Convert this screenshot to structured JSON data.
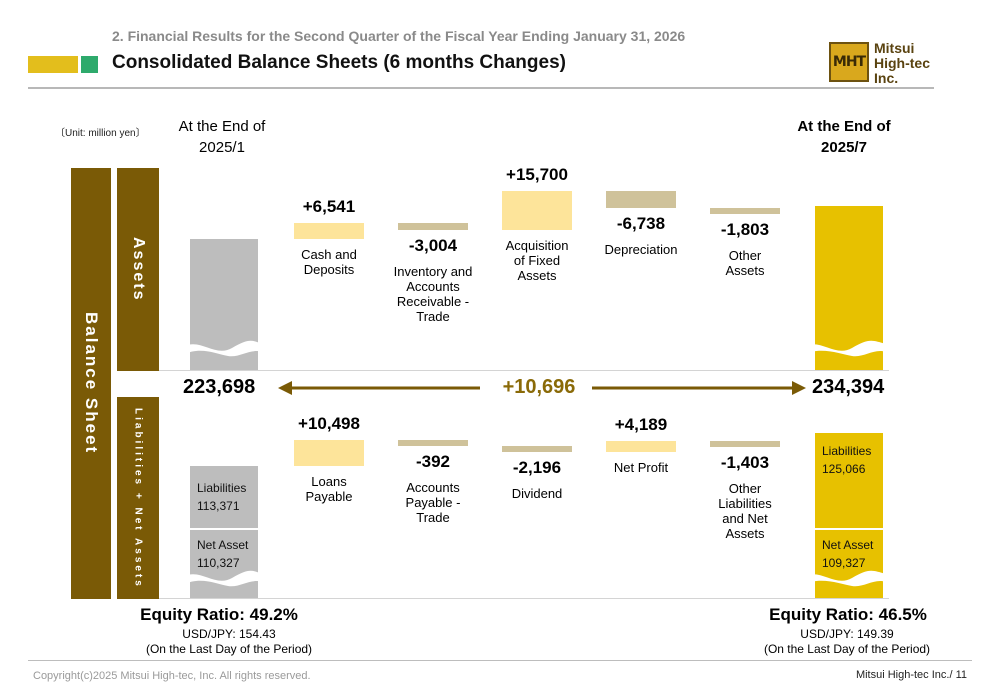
{
  "header": {
    "supertitle": "2. Financial Results for the Second Quarter of the Fiscal Year Ending January 31, 2026",
    "title": "Consolidated Balance Sheets (6 months Changes)",
    "logo_mark": "MHT",
    "logo_lines": [
      "Mitsui",
      "High-tec",
      "Inc."
    ]
  },
  "unit_label": "〔Unit: million yen〕",
  "side_labels": {
    "balance_sheet": "Balance Sheet",
    "assets": "Assets",
    "liabilities_net_assets": "Liabilities + Net Assets"
  },
  "columns": {
    "start_label_lines": [
      "At the End of",
      "2025/1"
    ],
    "end_label_lines": [
      "At the End of",
      "2025/7"
    ]
  },
  "chart_data": {
    "type": "bar",
    "subtype": "waterfall",
    "unit": "million yen",
    "start_total": {
      "label": "223,698",
      "value": 223698
    },
    "end_total": {
      "label": "234,394",
      "value": 234394
    },
    "total_change": {
      "label": "+10,696",
      "value": 10696
    },
    "assets_changes": [
      {
        "category_lines": [
          "Cash and",
          "Deposits"
        ],
        "label": "+6,541",
        "value": 6541
      },
      {
        "category_lines": [
          "Inventory and",
          "Accounts",
          "Receivable -",
          "Trade"
        ],
        "label": "-3,004",
        "value": -3004
      },
      {
        "category_lines": [
          "Acquisition",
          "of Fixed",
          "Assets"
        ],
        "label": "+15,700",
        "value": 15700
      },
      {
        "category_lines": [
          "Depreciation"
        ],
        "label": "-6,738",
        "value": -6738
      },
      {
        "category_lines": [
          "Other",
          "Assets"
        ],
        "label": "-1,803",
        "value": -1803
      }
    ],
    "liabilities_changes": [
      {
        "category_lines": [
          "Loans",
          "Payable"
        ],
        "label": "+10,498",
        "value": 10498
      },
      {
        "category_lines": [
          "Accounts",
          "Payable -",
          "Trade"
        ],
        "label": "-392",
        "value": -392
      },
      {
        "category_lines": [
          "Dividend"
        ],
        "label": "-2,196",
        "value": -2196
      },
      {
        "category_lines": [
          "Net Profit"
        ],
        "label": "+4,189",
        "value": 4189
      },
      {
        "category_lines": [
          "Other",
          "Liabilities",
          "and Net",
          "Assets"
        ],
        "label": "-1,403",
        "value": -1403
      }
    ],
    "start_breakdown": {
      "liabilities": {
        "name": "Liabilities",
        "label": "113,371",
        "value": 113371
      },
      "net_assets": {
        "name": "Net Asset",
        "label": "110,327",
        "value": 110327
      }
    },
    "end_breakdown": {
      "liabilities": {
        "name": "Liabilities",
        "label": "125,066",
        "value": 125066
      },
      "net_assets": {
        "name": "Net Asset",
        "label": "109,327",
        "value": 109327
      }
    },
    "colors": {
      "start_bar": "#bdbdbd",
      "end_bar": "#e7c100",
      "increase": "#fde49a",
      "decrease": "#cfc29a",
      "side_label": "#7a5a06",
      "arrow": "#7a5a06",
      "change_text": "#8a6a08"
    }
  },
  "equity": {
    "start": {
      "ratio": "Equity Ratio: 49.2%",
      "fx": "USD/JPY: 154.43",
      "note": "(On the Last Day of the Period)"
    },
    "end": {
      "ratio": "Equity Ratio: 46.5%",
      "fx": "USD/JPY: 149.39",
      "note": "(On the Last Day of the Period)"
    }
  },
  "footer": {
    "copyright": "Copyright(c)2025 Mitsui High-tec, Inc. All rights reserved.",
    "page": "Mitsui High-tec Inc./ 11"
  }
}
